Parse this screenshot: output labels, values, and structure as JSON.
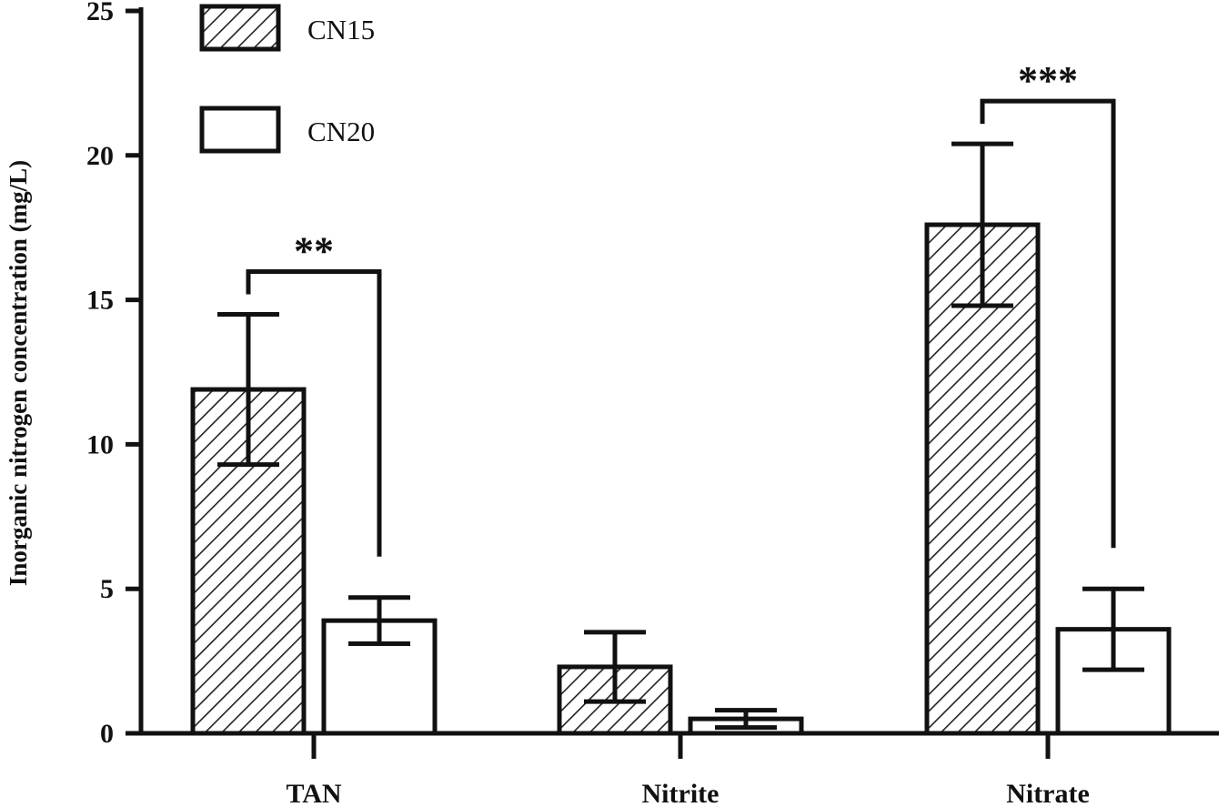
{
  "chart_data": {
    "type": "bar",
    "ylabel": "Inorganic nitrogen concentration (mg/L)",
    "ylim": [
      0,
      25
    ],
    "yticks": [
      0,
      5,
      10,
      15,
      20,
      25
    ],
    "categories": [
      "TAN",
      "Nitrite",
      "Nitrate"
    ],
    "series": [
      {
        "name": "CN15",
        "values": [
          11.9,
          2.3,
          17.6
        ],
        "errors": [
          2.6,
          1.2,
          2.8
        ],
        "pattern": "hatched"
      },
      {
        "name": "CN20",
        "values": [
          3.9,
          0.5,
          3.6
        ],
        "errors": [
          0.8,
          0.3,
          1.4
        ],
        "pattern": "open"
      }
    ],
    "significance": [
      {
        "category": "TAN",
        "label": "**"
      },
      {
        "category": "Nitrate",
        "label": "***"
      }
    ],
    "legend_position": "top-left",
    "grid": false,
    "colors": {
      "stroke": "#111111",
      "fill": "#ffffff"
    }
  }
}
